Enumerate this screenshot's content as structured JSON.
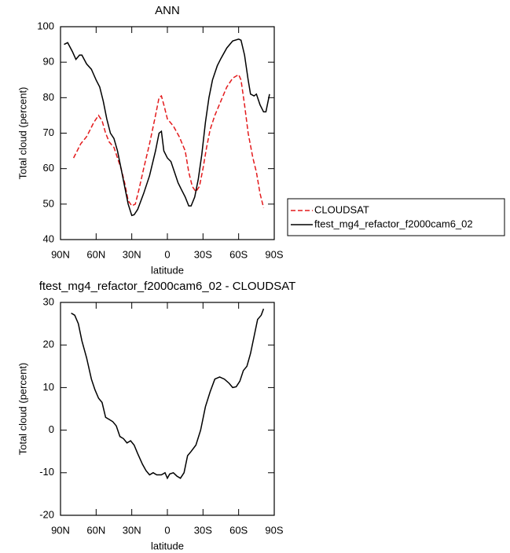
{
  "chart_data": [
    {
      "type": "line",
      "title": "ANN",
      "xlabel": "latitude",
      "ylabel": "Total cloud (percent)",
      "xlim": [
        90,
        -90
      ],
      "xticks": [
        {
          "value": 90,
          "label": "90N"
        },
        {
          "value": 60,
          "label": "60N"
        },
        {
          "value": 30,
          "label": "30N"
        },
        0,
        {
          "value": -30,
          "label": "30S"
        },
        {
          "value": -60,
          "label": "60S"
        },
        {
          "value": -90,
          "label": "90S"
        }
      ],
      "ylim": [
        40,
        100
      ],
      "yticks": [
        40,
        50,
        60,
        70,
        80,
        90,
        100
      ],
      "legend": "outside-right",
      "series": [
        {
          "name": "CLOUDSAT",
          "color": "#e31a1c",
          "line_style": "dashed",
          "x": [
            79,
            76,
            73,
            68,
            65,
            62,
            58,
            55,
            52,
            49,
            45,
            42,
            39,
            36,
            33,
            30,
            27,
            24,
            20,
            15,
            10,
            7,
            5,
            3,
            0,
            -5,
            -10,
            -15,
            -18,
            -21,
            -24,
            -27,
            -30,
            -33,
            -36,
            -40,
            -45,
            -50,
            -55,
            -60,
            -62,
            -65,
            -68,
            -72,
            -75,
            -78,
            -81
          ],
          "values": [
            63,
            65,
            67,
            69,
            71,
            73,
            75,
            73.5,
            70,
            67.5,
            66,
            63,
            60,
            56,
            51,
            49.5,
            50,
            54,
            60,
            67,
            75,
            80,
            80.5,
            78,
            74,
            72,
            69,
            65,
            59,
            55,
            53.5,
            55,
            60,
            66,
            71,
            75,
            79,
            83,
            85.5,
            86.5,
            85,
            78,
            70,
            63,
            59,
            53,
            49
          ]
        },
        {
          "name": "ftest_mg4_refactor_f2000cam6_02",
          "color": "#000000",
          "line_style": "solid",
          "x": [
            87,
            84,
            80,
            77,
            74,
            72,
            68,
            64,
            62,
            60,
            57,
            54,
            51,
            48,
            45,
            42,
            39,
            36,
            33,
            30,
            28,
            25,
            20,
            15,
            10,
            7,
            5,
            3,
            0,
            -3,
            -6,
            -9,
            -12,
            -15,
            -18,
            -20,
            -23,
            -26,
            -29,
            -32,
            -35,
            -38,
            -42,
            -45,
            -50,
            -55,
            -60,
            -62,
            -65,
            -68,
            -70,
            -73,
            -75,
            -78,
            -81,
            -83,
            -86
          ],
          "values": [
            95,
            95.5,
            93,
            90.8,
            92,
            92,
            89.5,
            88,
            86.5,
            85,
            83,
            79,
            74,
            70,
            68.5,
            65,
            60,
            55,
            50,
            46.8,
            47,
            48.5,
            53,
            58,
            65,
            70,
            70.5,
            65,
            63,
            62,
            59,
            56,
            54,
            52,
            49.5,
            49.5,
            52,
            57,
            64,
            73,
            80,
            85,
            89,
            91,
            94,
            96,
            96.5,
            96.2,
            92,
            85,
            81,
            80.5,
            81,
            78,
            76,
            76,
            81
          ]
        }
      ]
    },
    {
      "type": "line",
      "title": "ftest_mg4_refactor_f2000cam6_02 - CLOUDSAT",
      "xlabel": "latitude",
      "ylabel": "Total cloud (percent)",
      "xlim": [
        90,
        -90
      ],
      "xticks": [
        {
          "value": 90,
          "label": "90N"
        },
        {
          "value": 60,
          "label": "60N"
        },
        {
          "value": 30,
          "label": "30N"
        },
        0,
        {
          "value": -30,
          "label": "30S"
        },
        {
          "value": -60,
          "label": "60S"
        },
        {
          "value": -90,
          "label": "90S"
        }
      ],
      "ylim": [
        -20,
        30
      ],
      "yticks": [
        -20,
        -10,
        0,
        10,
        20,
        30
      ],
      "series": [
        {
          "color": "#000000",
          "line_style": "solid",
          "x": [
            81,
            78,
            75,
            72,
            68,
            64,
            61,
            58,
            55,
            52,
            49,
            46,
            43,
            40,
            37,
            34,
            31,
            28,
            25,
            21,
            18,
            15,
            12,
            9,
            5,
            2,
            0,
            -2,
            -5,
            -8,
            -11,
            -14,
            -17,
            -20,
            -24,
            -28,
            -32,
            -36,
            -40,
            -44,
            -48,
            -52,
            -55,
            -58,
            -61,
            -64,
            -67,
            -70,
            -73,
            -76,
            -79,
            -81
          ],
          "values": [
            27.5,
            27,
            25,
            21,
            17,
            12,
            9.5,
            7.5,
            6.5,
            3,
            2.5,
            2,
            1,
            -1.5,
            -2,
            -3,
            -2.5,
            -3.5,
            -5.5,
            -8,
            -9.5,
            -10.5,
            -10,
            -10.5,
            -10.5,
            -10,
            -11.3,
            -10.3,
            -10,
            -10.8,
            -11.3,
            -10,
            -6,
            -5,
            -3.5,
            0,
            5.5,
            9,
            12,
            12.5,
            12,
            11,
            10,
            10.2,
            11.5,
            14,
            15,
            18,
            22,
            26,
            27,
            28.5
          ]
        }
      ]
    }
  ]
}
